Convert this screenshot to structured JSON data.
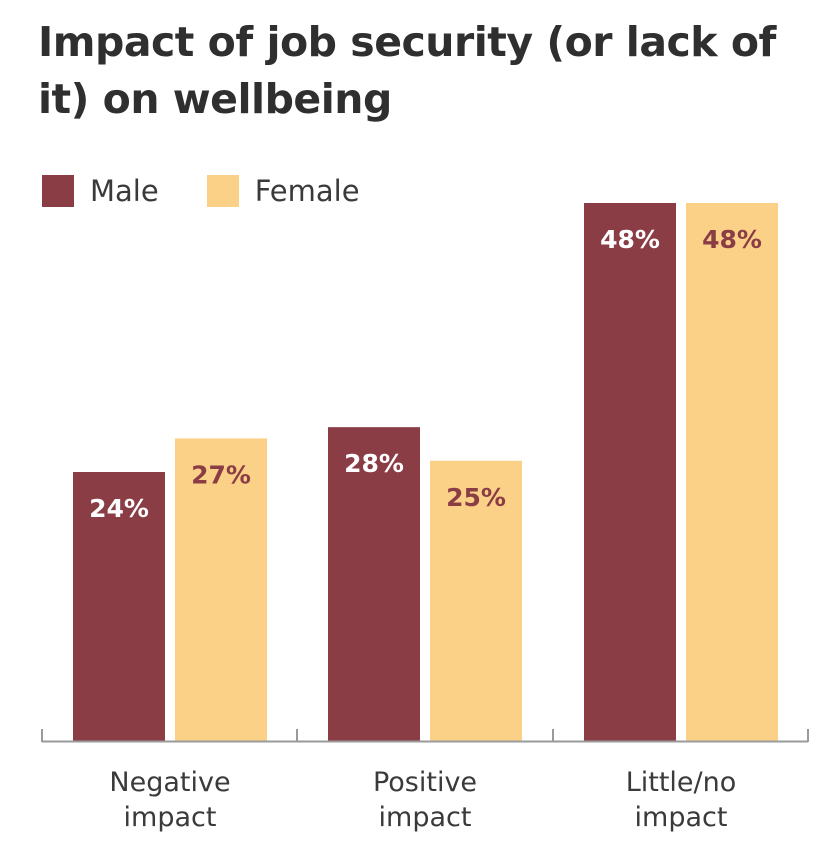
{
  "chart_data": {
    "type": "bar",
    "title": "Impact of job security (or lack of it) on wellbeing",
    "categories": [
      "Negative impact",
      "Positive impact",
      "Little/no impact"
    ],
    "category_lines": [
      [
        "Negative",
        "impact"
      ],
      [
        "Positive",
        "impact"
      ],
      [
        "Little/no",
        "impact"
      ]
    ],
    "series": [
      {
        "name": "Male",
        "values": [
          24,
          28,
          48
        ],
        "color": "#8b3d46",
        "label_color": "#ffffff"
      },
      {
        "name": "Female",
        "values": [
          27,
          25,
          48
        ],
        "color": "#fad186",
        "label_color": "#8b3d46"
      }
    ],
    "value_suffix": "%",
    "ylim": [
      0,
      48
    ],
    "xlabel": "",
    "ylabel": "",
    "grid": false,
    "legend": "top-left"
  }
}
